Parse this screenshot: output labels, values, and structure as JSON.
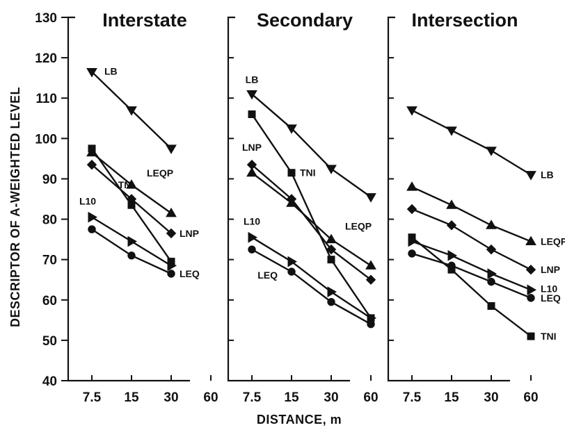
{
  "chart_data": {
    "type": "line",
    "ylabel": "DESCRIPTOR OF A-WEIGHTED LEVEL",
    "xlabel": "DISTANCE, m",
    "ylim": [
      40,
      130
    ],
    "yticks": [
      "40",
      "50",
      "60",
      "70",
      "80",
      "90",
      "100",
      "110",
      "120",
      "130"
    ],
    "x_scale": "log",
    "xticks": [
      "7.5",
      "15",
      "30",
      "60"
    ],
    "grid": false,
    "panels": [
      {
        "title": "Interstate",
        "series": [
          {
            "name": "LB",
            "marker": "triangle-down",
            "x": [
              7.5,
              15,
              30
            ],
            "values": [
              116.5,
              107,
              97.5
            ]
          },
          {
            "name": "LEQP",
            "marker": "triangle-up",
            "x": [
              7.5,
              15,
              30
            ],
            "values": [
              96.5,
              88.5,
              81.5
            ]
          },
          {
            "name": "LNP",
            "marker": "diamond",
            "x": [
              7.5,
              15,
              30
            ],
            "values": [
              93.5,
              85,
              76.5
            ]
          },
          {
            "name": "TNI",
            "marker": "square",
            "x": [
              7.5,
              15,
              30
            ],
            "values": [
              97.5,
              83.5,
              69.5
            ]
          },
          {
            "name": "L10",
            "marker": "triangle-right",
            "x": [
              7.5,
              15,
              30
            ],
            "values": [
              80.5,
              74.5,
              68.5
            ]
          },
          {
            "name": "LEQ",
            "marker": "circle",
            "x": [
              7.5,
              15,
              30
            ],
            "values": [
              77.5,
              71,
              66.5
            ]
          }
        ],
        "labels": [
          {
            "series": "LB",
            "text": "LB"
          },
          {
            "series": "LEQP",
            "text": "LEQP"
          },
          {
            "series": "L10",
            "text": "L10"
          },
          {
            "series": "TNI",
            "text": "TNI"
          },
          {
            "series": "LNP",
            "text": "LNP"
          },
          {
            "series": "LEQ",
            "text": "LEQ"
          }
        ]
      },
      {
        "title": "Secondary",
        "series": [
          {
            "name": "LB",
            "marker": "triangle-down",
            "x": [
              7.5,
              15,
              30,
              60
            ],
            "values": [
              111,
              102.5,
              92.5,
              85.5
            ]
          },
          {
            "name": "TNI",
            "marker": "square",
            "x": [
              7.5,
              15,
              30,
              60
            ],
            "values": [
              106,
              91.5,
              70,
              55.5
            ]
          },
          {
            "name": "LNP",
            "marker": "diamond",
            "x": [
              7.5,
              15,
              30,
              60
            ],
            "values": [
              93.5,
              85,
              72.5,
              65
            ]
          },
          {
            "name": "LEQP",
            "marker": "triangle-up",
            "x": [
              7.5,
              15,
              30,
              60
            ],
            "values": [
              91.5,
              84,
              75,
              68.5
            ]
          },
          {
            "name": "L10",
            "marker": "triangle-right",
            "x": [
              7.5,
              15,
              30,
              60
            ],
            "values": [
              75.5,
              69.5,
              62,
              55.5
            ]
          },
          {
            "name": "LEQ",
            "marker": "circle",
            "x": [
              7.5,
              15,
              30,
              60
            ],
            "values": [
              72.5,
              67,
              59.5,
              54
            ]
          }
        ],
        "labels": [
          {
            "series": "LB",
            "text": "LB"
          },
          {
            "series": "LNP",
            "text": "LNP"
          },
          {
            "series": "TNI",
            "text": "TNI"
          },
          {
            "series": "L10",
            "text": "L10"
          },
          {
            "series": "LEQP",
            "text": "LEQP"
          },
          {
            "series": "LEQ",
            "text": "LEQ"
          }
        ]
      },
      {
        "title": "Intersection",
        "series": [
          {
            "name": "LB",
            "marker": "triangle-down",
            "x": [
              7.5,
              15,
              30,
              60
            ],
            "values": [
              107,
              102,
              97,
              91
            ]
          },
          {
            "name": "LEQP",
            "marker": "triangle-up",
            "x": [
              7.5,
              15,
              30,
              60
            ],
            "values": [
              88,
              83.5,
              78.5,
              74.5
            ]
          },
          {
            "name": "LNP",
            "marker": "diamond",
            "x": [
              7.5,
              15,
              30,
              60
            ],
            "values": [
              82.5,
              78.5,
              72.5,
              67.5
            ]
          },
          {
            "name": "L10",
            "marker": "triangle-right",
            "x": [
              7.5,
              15,
              30,
              60
            ],
            "values": [
              74.5,
              71,
              66.5,
              62.5
            ]
          },
          {
            "name": "LEQ",
            "marker": "circle",
            "x": [
              7.5,
              15,
              30,
              60
            ],
            "values": [
              71.5,
              68.5,
              64.5,
              60.5
            ]
          },
          {
            "name": "TNI",
            "marker": "square",
            "x": [
              7.5,
              15,
              30,
              60
            ],
            "values": [
              75.5,
              67.5,
              58.5,
              51
            ]
          }
        ],
        "labels": [
          {
            "series": "LB",
            "text": "LB"
          },
          {
            "series": "LEQP",
            "text": "LEQP"
          },
          {
            "series": "LNP",
            "text": "LNP"
          },
          {
            "series": "L10",
            "text": "L10"
          },
          {
            "series": "LEQ",
            "text": "LEQ"
          },
          {
            "series": "TNI",
            "text": "TNI"
          }
        ]
      }
    ]
  }
}
